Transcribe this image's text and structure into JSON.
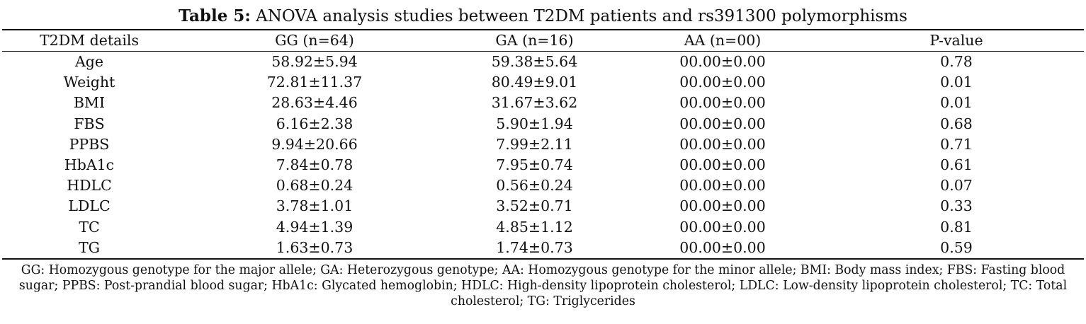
{
  "title": {
    "label": "Table 5:",
    "text": "ANOVA analysis studies between T2DM patients and rs391300 polymorphisms"
  },
  "table": {
    "headers": [
      "T2DM details",
      "GG (n=64)",
      "GA (n=16)",
      "AA (n=00)",
      "P-value"
    ],
    "rows": [
      [
        "Age",
        "58.92±5.94",
        "59.38±5.64",
        "00.00±0.00",
        "0.78"
      ],
      [
        "Weight",
        "72.81±11.37",
        "80.49±9.01",
        "00.00±0.00",
        "0.01"
      ],
      [
        "BMI",
        "28.63±4.46",
        "31.67±3.62",
        "00.00±0.00",
        "0.01"
      ],
      [
        "FBS",
        "6.16±2.38",
        "5.90±1.94",
        "00.00±0.00",
        "0.68"
      ],
      [
        "PPBS",
        "9.94±20.66",
        "7.99±2.11",
        "00.00±0.00",
        "0.71"
      ],
      [
        "HbA1c",
        "7.84±0.78",
        "7.95±0.74",
        "00.00±0.00",
        "0.61"
      ],
      [
        "HDLC",
        "0.68±0.24",
        "0.56±0.24",
        "00.00±0.00",
        "0.07"
      ],
      [
        "LDLC",
        "3.78±1.01",
        "3.52±0.71",
        "00.00±0.00",
        "0.33"
      ],
      [
        "TC",
        "4.94±1.39",
        "4.85±1.12",
        "00.00±0.00",
        "0.81"
      ],
      [
        "TG",
        "1.63±0.73",
        "1.74±0.73",
        "00.00±0.00",
        "0.59"
      ]
    ]
  },
  "footnote": "GG: Homozygous genotype for the major allele; GA: Heterozygous genotype; AA: Homozygous genotype for the minor allele; BMI: Body mass index; FBS: Fasting blood sugar; PPBS: Post-prandial blood sugar; HbA1c: Glycated hemoglobin; HDLC: High-density lipoprotein cholesterol; LDLC: Low-density lipoprotein cholesterol; TC: Total cholesterol; TG: Triglycerides"
}
